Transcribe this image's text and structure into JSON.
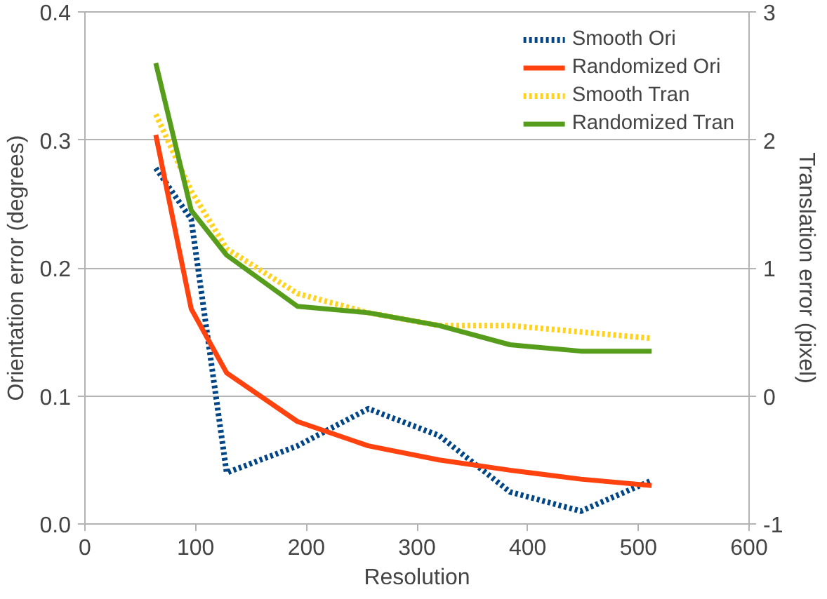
{
  "chart_data": {
    "type": "line",
    "xlabel": "Resolution",
    "ylabel": "Orientation error (degrees)",
    "y2label": "Translation error (pixel)",
    "x": [
      64,
      96,
      128,
      192,
      256,
      320,
      384,
      448,
      512
    ],
    "xlim": [
      0,
      600
    ],
    "xticks": [
      0,
      100,
      200,
      300,
      400,
      500,
      600
    ],
    "ylim": [
      0,
      0.4
    ],
    "yticks": [
      {
        "value": 0,
        "label": "0.0"
      },
      0.1,
      0.2,
      0.3,
      0.4
    ],
    "y2lim": [
      -1,
      3
    ],
    "y2ticks": [
      -1,
      0,
      1,
      2,
      3
    ],
    "grid": "y",
    "legend": "top right",
    "marker": "none",
    "series": [
      {
        "name": "Smooth Ori",
        "color": "#004586",
        "line_style": "dotted",
        "values": [
          0.278,
          0.238,
          0.04,
          0.061,
          0.09,
          0.069,
          0.025,
          0.01,
          0.034
        ]
      },
      {
        "name": "Randomized Ori",
        "color": "#ff420e",
        "line_style": "solid",
        "values": [
          0.304,
          0.168,
          0.118,
          0.08,
          0.061,
          0.05,
          0.042,
          0.035,
          0.03
        ]
      },
      {
        "name": "Smooth Tran",
        "color": "#ffd320",
        "line_style": "dotted",
        "axis": "y2",
        "values": [
          2.2,
          1.6,
          1.15,
          0.8,
          0.65,
          0.55,
          0.55,
          0.5,
          0.45
        ]
      },
      {
        "name": "Randomized Tran",
        "color": "#579d1c",
        "line_style": "solid",
        "axis": "y2",
        "values": [
          2.6,
          1.45,
          1.1,
          0.7,
          0.65,
          0.55,
          0.4,
          0.35,
          0.35
        ]
      }
    ]
  }
}
